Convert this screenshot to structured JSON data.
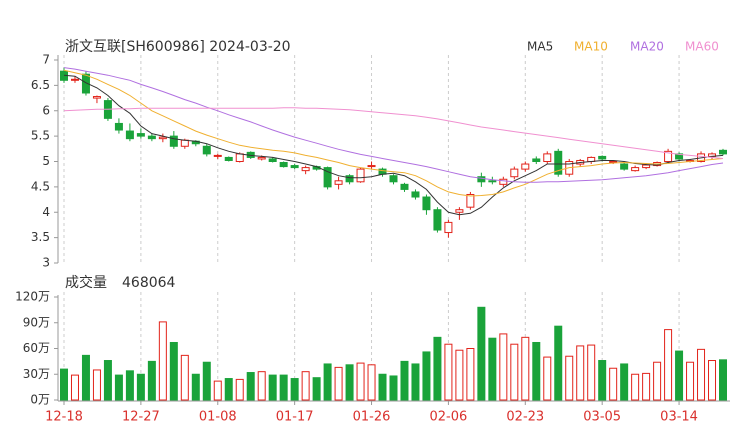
{
  "chart_data": {
    "type": "candlestick",
    "title": "浙文互联[SH600986] 2024-03-20",
    "categories": [
      "12-18",
      null,
      null,
      null,
      null,
      null,
      null,
      "12-27",
      null,
      null,
      null,
      null,
      null,
      null,
      "01-08",
      null,
      null,
      null,
      null,
      null,
      null,
      "01-17",
      null,
      null,
      null,
      null,
      null,
      null,
      "01-26",
      null,
      null,
      null,
      null,
      null,
      null,
      "02-06",
      null,
      null,
      null,
      null,
      null,
      null,
      "02-23",
      null,
      null,
      null,
      null,
      null,
      null,
      "03-05",
      null,
      null,
      null,
      null,
      null,
      null,
      "03-14",
      null,
      null,
      null,
      null
    ],
    "open": [
      6.78,
      6.6,
      6.72,
      6.25,
      6.2,
      5.75,
      5.6,
      5.55,
      5.5,
      5.45,
      5.5,
      5.3,
      5.4,
      5.3,
      5.1,
      5.08,
      5.0,
      5.18,
      5.05,
      5.05,
      4.98,
      4.92,
      4.82,
      4.9,
      4.88,
      4.55,
      4.72,
      4.6,
      4.9,
      4.85,
      4.72,
      4.55,
      4.4,
      4.3,
      4.05,
      3.6,
      4.0,
      4.1,
      4.7,
      4.62,
      4.55,
      4.7,
      4.85,
      5.05,
      5.0,
      5.2,
      4.75,
      4.95,
      5.0,
      5.1,
      4.98,
      4.95,
      4.82,
      4.88,
      4.92,
      5.0,
      5.15,
      5.0,
      5.0,
      5.1,
      5.22
    ],
    "high": [
      6.85,
      6.68,
      6.78,
      6.3,
      6.25,
      5.85,
      5.75,
      5.65,
      5.55,
      5.55,
      5.6,
      5.45,
      5.42,
      5.35,
      5.15,
      5.1,
      5.18,
      5.2,
      5.12,
      5.08,
      5.0,
      4.95,
      4.92,
      4.92,
      4.9,
      4.7,
      4.75,
      4.88,
      5.0,
      4.88,
      4.75,
      4.58,
      4.45,
      4.35,
      4.1,
      3.85,
      4.1,
      4.4,
      4.78,
      4.7,
      4.7,
      4.9,
      5.0,
      5.1,
      5.2,
      5.25,
      5.05,
      5.05,
      5.1,
      5.12,
      5.02,
      4.98,
      4.92,
      4.95,
      5.0,
      5.25,
      5.18,
      5.05,
      5.2,
      5.18,
      5.25
    ],
    "low": [
      6.55,
      6.55,
      6.3,
      6.15,
      5.8,
      5.55,
      5.4,
      5.45,
      5.4,
      5.38,
      5.25,
      5.25,
      5.3,
      5.1,
      5.05,
      5.0,
      4.98,
      5.05,
      5.02,
      4.98,
      4.88,
      4.85,
      4.75,
      4.82,
      4.45,
      4.45,
      4.55,
      4.58,
      4.85,
      4.7,
      4.55,
      4.4,
      4.25,
      3.95,
      3.6,
      3.5,
      3.85,
      4.05,
      4.5,
      4.55,
      4.5,
      4.65,
      4.8,
      4.95,
      4.95,
      4.7,
      4.7,
      4.9,
      4.95,
      5.0,
      4.95,
      4.82,
      4.8,
      4.85,
      4.9,
      4.98,
      5.0,
      4.98,
      4.98,
      5.05,
      5.12
    ],
    "close": [
      6.6,
      6.62,
      6.35,
      6.28,
      5.85,
      5.62,
      5.45,
      5.5,
      5.45,
      5.48,
      5.3,
      5.42,
      5.35,
      5.15,
      5.12,
      5.02,
      5.15,
      5.08,
      5.08,
      5.0,
      4.9,
      4.88,
      4.88,
      4.85,
      4.5,
      4.62,
      4.6,
      4.85,
      4.92,
      4.75,
      4.6,
      4.45,
      4.3,
      4.05,
      3.65,
      3.8,
      4.05,
      4.35,
      4.6,
      4.6,
      4.65,
      4.85,
      4.95,
      5.0,
      5.15,
      4.75,
      5.0,
      5.02,
      5.08,
      5.05,
      5.0,
      4.85,
      4.88,
      4.93,
      4.98,
      5.2,
      5.05,
      5.02,
      5.15,
      5.15,
      5.15
    ],
    "volume": [
      36,
      29,
      52,
      35,
      46,
      29,
      34,
      30,
      45,
      91,
      67,
      52,
      30,
      44,
      22,
      25,
      24,
      32,
      33,
      29,
      29,
      25,
      33,
      26,
      42,
      38,
      41,
      43,
      41,
      30,
      28,
      45,
      42,
      56,
      73,
      65,
      58,
      60,
      108,
      72,
      77,
      65,
      73,
      67,
      50,
      86,
      51,
      63,
      64,
      46,
      37,
      42,
      30,
      31,
      44,
      82,
      57,
      44,
      59,
      46,
      46.8064
    ],
    "up_color": "#e2231a",
    "down_color": "#1aa33a",
    "ylim": [
      3,
      7
    ],
    "yticks": [
      3,
      3.5,
      4,
      4.5,
      5,
      5.5,
      6,
      6.5,
      7
    ],
    "volume_title": "成交量",
    "latest_volume": 468064,
    "volume_ylim": [
      0,
      120
    ],
    "volume_yticks": [
      {
        "value": 0,
        "label": "0万"
      },
      {
        "value": 30,
        "label": "30万"
      },
      {
        "value": 60,
        "label": "60万"
      },
      {
        "value": 90,
        "label": "90万"
      },
      {
        "value": 120,
        "label": "120万"
      }
    ],
    "series": [
      {
        "name": "MA5",
        "color": "#333333",
        "values": [
          6.7,
          6.68,
          6.55,
          6.45,
          6.3,
          6.1,
          5.95,
          5.7,
          5.55,
          5.5,
          5.45,
          5.42,
          5.4,
          5.35,
          5.27,
          5.2,
          5.15,
          5.12,
          5.1,
          5.08,
          5.04,
          5.0,
          4.95,
          4.9,
          4.8,
          4.72,
          4.68,
          4.68,
          4.7,
          4.75,
          4.77,
          4.72,
          4.6,
          4.45,
          4.2,
          4.0,
          3.95,
          3.98,
          4.1,
          4.3,
          4.48,
          4.62,
          4.72,
          4.82,
          4.95,
          4.95,
          4.95,
          4.98,
          5.0,
          5.02,
          5.02,
          5.0,
          4.96,
          4.94,
          4.93,
          4.98,
          5.02,
          5.04,
          5.07,
          5.1,
          5.12
        ]
      },
      {
        "name": "MA10",
        "color": "#f0b030",
        "values": [
          6.8,
          6.75,
          6.7,
          6.62,
          6.52,
          6.42,
          6.3,
          6.15,
          6.0,
          5.9,
          5.8,
          5.7,
          5.6,
          5.52,
          5.45,
          5.38,
          5.32,
          5.28,
          5.25,
          5.22,
          5.2,
          5.17,
          5.12,
          5.08,
          5.03,
          4.98,
          4.92,
          4.88,
          4.85,
          4.82,
          4.8,
          4.78,
          4.72,
          4.62,
          4.5,
          4.4,
          4.35,
          4.32,
          4.33,
          4.35,
          4.4,
          4.48,
          4.55,
          4.65,
          4.75,
          4.82,
          4.88,
          4.9,
          4.92,
          4.95,
          4.97,
          4.98,
          4.97,
          4.96,
          4.95,
          4.96,
          4.98,
          5.0,
          5.02,
          5.04,
          5.06
        ]
      },
      {
        "name": "MA20",
        "color": "#b070e0",
        "values": [
          6.85,
          6.82,
          6.78,
          6.74,
          6.7,
          6.65,
          6.6,
          6.52,
          6.45,
          6.38,
          6.3,
          6.22,
          6.15,
          6.07,
          6.0,
          5.92,
          5.85,
          5.78,
          5.7,
          5.62,
          5.55,
          5.48,
          5.42,
          5.36,
          5.3,
          5.24,
          5.19,
          5.14,
          5.1,
          5.06,
          5.02,
          4.98,
          4.94,
          4.9,
          4.85,
          4.8,
          4.75,
          4.7,
          4.67,
          4.64,
          4.62,
          4.6,
          4.59,
          4.59,
          4.6,
          4.6,
          4.61,
          4.62,
          4.63,
          4.64,
          4.66,
          4.68,
          4.7,
          4.72,
          4.75,
          4.78,
          4.82,
          4.86,
          4.9,
          4.94,
          4.97
        ]
      },
      {
        "name": "MA60",
        "color": "#f090d0",
        "values": [
          6.0,
          6.01,
          6.02,
          6.03,
          6.03,
          6.04,
          6.04,
          6.05,
          6.05,
          6.05,
          6.05,
          6.05,
          6.05,
          6.05,
          6.05,
          6.05,
          6.05,
          6.05,
          6.05,
          6.05,
          6.06,
          6.06,
          6.05,
          6.05,
          6.04,
          6.03,
          6.02,
          6.0,
          5.98,
          5.96,
          5.94,
          5.92,
          5.9,
          5.87,
          5.84,
          5.8,
          5.76,
          5.72,
          5.68,
          5.65,
          5.62,
          5.59,
          5.56,
          5.53,
          5.5,
          5.47,
          5.44,
          5.41,
          5.38,
          5.35,
          5.32,
          5.29,
          5.26,
          5.23,
          5.2,
          5.17,
          5.14,
          5.12,
          5.1,
          5.08,
          5.06
        ]
      }
    ]
  }
}
